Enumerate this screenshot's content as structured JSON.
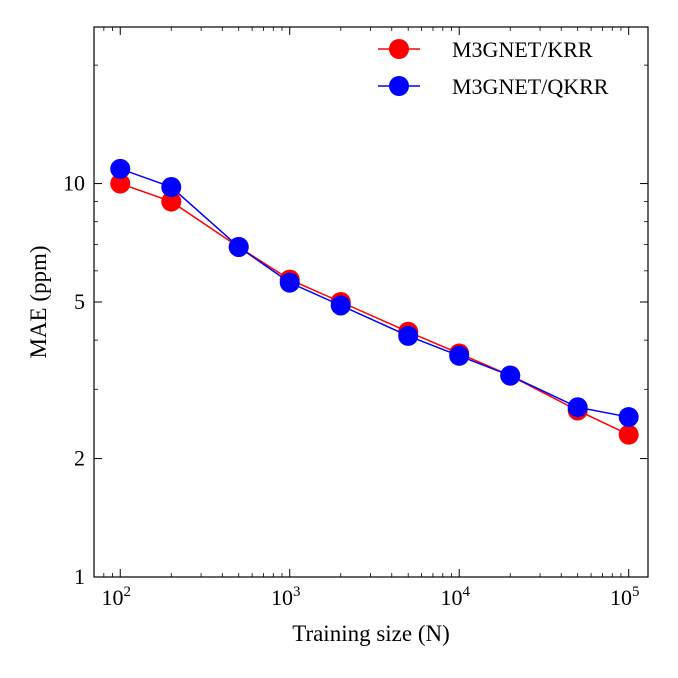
{
  "chart_data": {
    "type": "line",
    "title": "",
    "xlabel": "Training size (N)",
    "ylabel": "MAE (ppm)",
    "xscale": "log",
    "yscale": "log",
    "xlim": [
      70,
      130000
    ],
    "ylim": [
      1,
      25
    ],
    "x_ticks": [
      {
        "value": 100,
        "base": "10",
        "exp": "2"
      },
      {
        "value": 1000,
        "base": "10",
        "exp": "3"
      },
      {
        "value": 10000,
        "base": "10",
        "exp": "4"
      },
      {
        "value": 100000,
        "base": "10",
        "exp": "5"
      }
    ],
    "y_ticks": [
      {
        "value": 1,
        "label": "1"
      },
      {
        "value": 2,
        "label": "2"
      },
      {
        "value": 5,
        "label": "5"
      },
      {
        "value": 10,
        "label": "10"
      }
    ],
    "legend_position": "top-right",
    "x": [
      100,
      200,
      500,
      1000,
      2000,
      5000,
      10000,
      20000,
      50000,
      100000
    ],
    "series": [
      {
        "name": "M3GNET/KRR",
        "color": "#ff0000",
        "values": [
          10.0,
          9.0,
          6.9,
          5.7,
          5.0,
          4.2,
          3.7,
          3.25,
          2.65,
          2.3
        ]
      },
      {
        "name": "M3GNET/QKRR",
        "color": "#0000ff",
        "values": [
          10.9,
          9.8,
          6.9,
          5.6,
          4.9,
          4.1,
          3.65,
          3.25,
          2.7,
          2.55
        ]
      }
    ]
  }
}
